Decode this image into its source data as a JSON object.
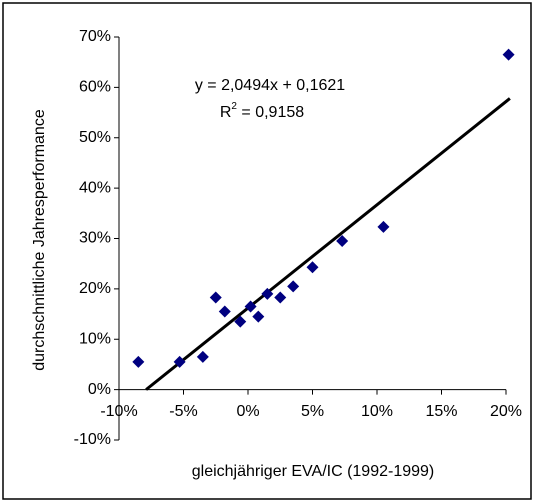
{
  "chart_data": {
    "type": "scatter",
    "x_label": "gleichjähriger  EVA/IC (1992-1999)",
    "y_label": "durchschnittliche Jahresperformance",
    "series": [
      {
        "color": "#000080",
        "x": [
          -8.5,
          -5.3,
          -3.5,
          -2.5,
          -1.8,
          -0.6,
          0.2,
          0.8,
          1.5,
          2.5,
          3.5,
          5,
          7.3,
          10.5,
          20.2
        ],
        "values": [
          5.5,
          5.5,
          6.5,
          18.3,
          15.5,
          13.5,
          16.5,
          14.5,
          19,
          18.3,
          20.5,
          24.3,
          29.5,
          32.3,
          66.5
        ]
      }
    ],
    "trendline": {
      "color": "#000000",
      "x": [
        -7.9,
        20.3
      ],
      "values": [
        0,
        57.8
      ]
    },
    "equation": "y = 2,0494x + 0,1621",
    "r_squared": {
      "base": "R",
      "sup": "2",
      "rest": " = 0,9158"
    },
    "xlim": [
      -10,
      20
    ],
    "xticks": [
      {
        "value": -10,
        "label": "-10%"
      },
      {
        "value": -5,
        "label": "-5%"
      },
      {
        "value": 0,
        "label": "0%"
      },
      {
        "value": 5,
        "label": "5%"
      },
      {
        "value": 10,
        "label": "10%"
      },
      {
        "value": 15,
        "label": "15%"
      },
      {
        "value": 20,
        "label": "20%"
      }
    ],
    "ylim": [
      -10,
      70
    ],
    "yticks": [
      {
        "value": -10,
        "label": "-10%"
      },
      {
        "value": 0,
        "label": "0%"
      },
      {
        "value": 10,
        "label": "10%"
      },
      {
        "value": 20,
        "label": "20%"
      },
      {
        "value": 30,
        "label": "30%"
      },
      {
        "value": 40,
        "label": "40%"
      },
      {
        "value": 50,
        "label": "50%"
      },
      {
        "value": 60,
        "label": "60%"
      },
      {
        "value": 70,
        "label": "70%"
      }
    ],
    "grid": false
  }
}
